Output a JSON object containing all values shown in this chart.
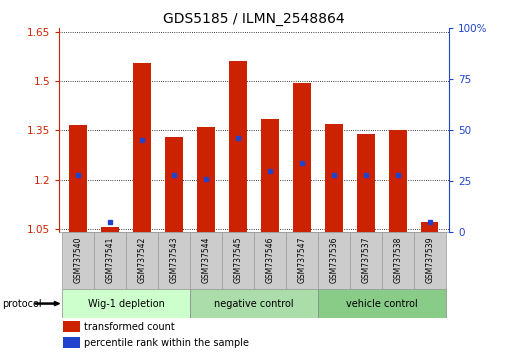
{
  "title": "GDS5185 / ILMN_2548864",
  "samples": [
    "GSM737540",
    "GSM737541",
    "GSM737542",
    "GSM737543",
    "GSM737544",
    "GSM737545",
    "GSM737546",
    "GSM737547",
    "GSM737536",
    "GSM737537",
    "GSM737538",
    "GSM737539"
  ],
  "transformed_count": [
    1.365,
    1.055,
    1.555,
    1.33,
    1.36,
    1.56,
    1.385,
    1.495,
    1.37,
    1.34,
    1.35,
    1.072
  ],
  "percentile_rank_pct": [
    28,
    5,
    45,
    28,
    26,
    46,
    30,
    34,
    28,
    28,
    28,
    5
  ],
  "groups": [
    {
      "label": "Wig-1 depletion",
      "start": 0,
      "end": 3
    },
    {
      "label": "negative control",
      "start": 4,
      "end": 7
    },
    {
      "label": "vehicle control",
      "start": 8,
      "end": 11
    }
  ],
  "group_colors": [
    "#ccffcc",
    "#aaddaa",
    "#88cc88"
  ],
  "ylim_left": [
    1.04,
    1.66
  ],
  "ylim_right": [
    0,
    100
  ],
  "yticks_left": [
    1.05,
    1.2,
    1.35,
    1.5,
    1.65
  ],
  "yticks_right": [
    0,
    25,
    50,
    75,
    100
  ],
  "bar_color": "#cc2200",
  "dot_color": "#2244cc",
  "bg_color": "#ffffff",
  "grid_color": "#000000",
  "legend_red": "transformed count",
  "legend_blue": "percentile rank within the sample",
  "protocol_label": "protocol"
}
